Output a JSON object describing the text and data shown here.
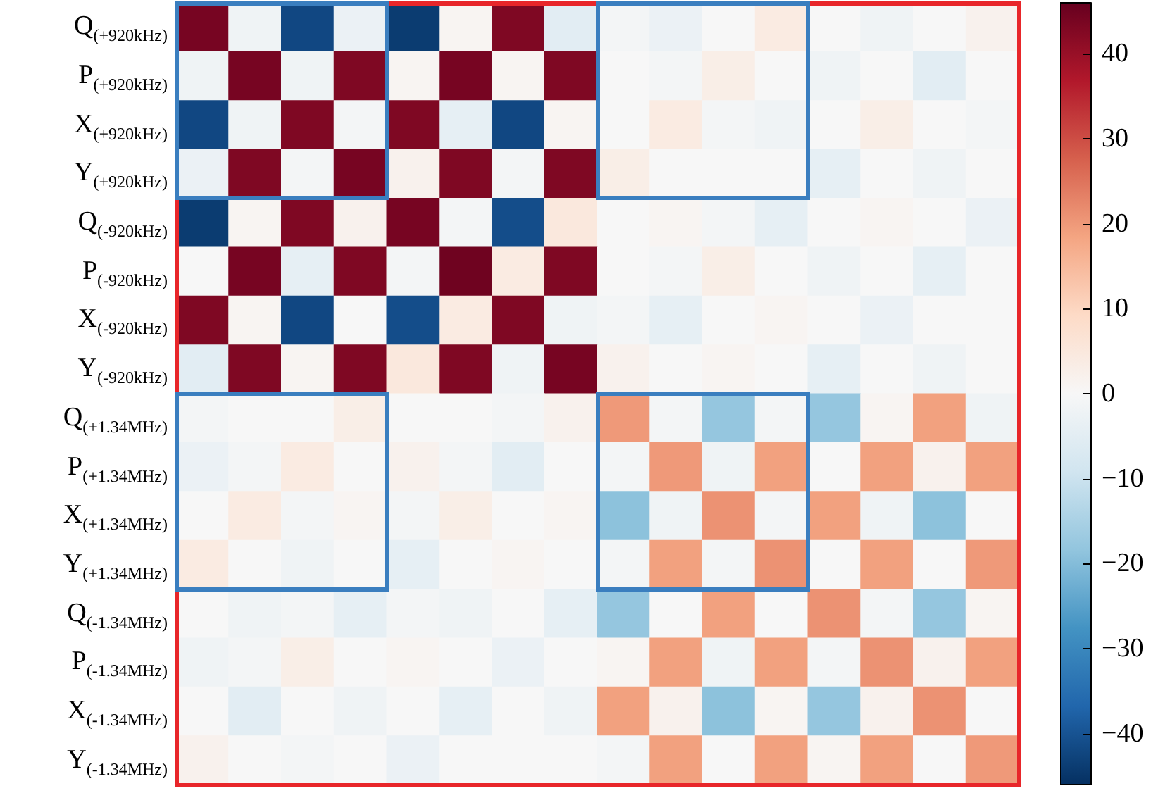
{
  "chart_data": {
    "type": "heatmap",
    "categories": [
      null,
      null,
      null,
      null,
      null,
      null,
      null,
      null,
      null,
      null,
      null,
      null,
      null,
      null,
      null,
      null
    ],
    "y_categories": [
      "Q$_{(+920kHz)}$",
      "P$_{(+920kHz)}$",
      "X$_{(+920kHz)}$",
      "Y$_{(+920kHz)}$",
      "Q$_{(-920kHz)}$",
      "P$_{(-920kHz)}$",
      "X$_{(-920kHz)}$",
      "Y$_{(-920kHz)}$",
      "Q$_{(+1.34MHz)}$",
      "P$_{(+1.34MHz)}$",
      "X$_{(+1.34MHz)}$",
      "Y$_{(+1.34MHz)}$",
      "Q$_{(-1.34MHz)}$",
      "P$_{(-1.34MHz)}$",
      "X$_{(-1.34MHz)}$",
      "Y$_{(-1.34MHz)}$"
    ],
    "cells": [
      [
        44,
        -2,
        -42,
        -3,
        -44,
        1,
        43,
        -5,
        -1,
        -3,
        0,
        4,
        0,
        -2,
        0,
        2
      ],
      [
        -2,
        44,
        -2,
        43,
        1,
        44,
        1,
        43,
        0,
        -1,
        3,
        0,
        -2,
        0,
        -5,
        0
      ],
      [
        -42,
        -2,
        43,
        -1,
        43,
        -4,
        -42,
        1,
        0,
        4,
        -1,
        -2,
        0,
        3,
        0,
        -1
      ],
      [
        -3,
        43,
        -1,
        44,
        2,
        43,
        -1,
        43,
        3,
        0,
        0,
        0,
        -4,
        0,
        -2,
        0
      ],
      [
        -44,
        1,
        43,
        2,
        44,
        -1,
        -41,
        5,
        0,
        1,
        -1,
        -4,
        0,
        1,
        0,
        -3
      ],
      [
        0,
        44,
        -4,
        43,
        -1,
        45,
        4,
        43,
        0,
        -1,
        3,
        0,
        -2,
        0,
        -4,
        0
      ],
      [
        43,
        1,
        -42,
        0,
        -41,
        4,
        43,
        -2,
        -1,
        -4,
        0,
        1,
        0,
        -3,
        0,
        0
      ],
      [
        -5,
        43,
        1,
        43,
        5,
        43,
        -2,
        44,
        2,
        0,
        1,
        0,
        -4,
        0,
        -2,
        0
      ],
      [
        -1,
        0,
        0,
        3,
        0,
        0,
        -1,
        2,
        20,
        -1,
        -18,
        -1,
        -18,
        1,
        19,
        -2
      ],
      [
        -3,
        -1,
        4,
        0,
        2,
        -1,
        -5,
        0,
        -1,
        20,
        -2,
        19,
        0,
        19,
        2,
        19
      ],
      [
        0,
        4,
        -1,
        1,
        -1,
        3,
        0,
        1,
        -19,
        -2,
        21,
        -1,
        19,
        -2,
        -19,
        0
      ],
      [
        4,
        0,
        -2,
        0,
        -4,
        0,
        1,
        0,
        -1,
        19,
        -1,
        21,
        0,
        19,
        0,
        20
      ],
      [
        0,
        -2,
        -1,
        -4,
        -1,
        -2,
        0,
        -4,
        -18,
        0,
        19,
        0,
        21,
        -1,
        -18,
        1
      ],
      [
        -2,
        -1,
        3,
        0,
        1,
        0,
        -3,
        0,
        1,
        19,
        -2,
        19,
        -1,
        21,
        2,
        19
      ],
      [
        0,
        -5,
        0,
        -2,
        0,
        -4,
        0,
        -2,
        19,
        2,
        -19,
        1,
        -18,
        2,
        21,
        0
      ],
      [
        2,
        0,
        -1,
        0,
        -3,
        0,
        0,
        0,
        -1,
        19,
        0,
        19,
        1,
        19,
        0,
        20
      ]
    ],
    "clim": [
      -46,
      46
    ],
    "cticks": [
      -40,
      -30,
      -20,
      -10,
      0,
      10,
      20,
      30,
      40
    ]
  }
}
